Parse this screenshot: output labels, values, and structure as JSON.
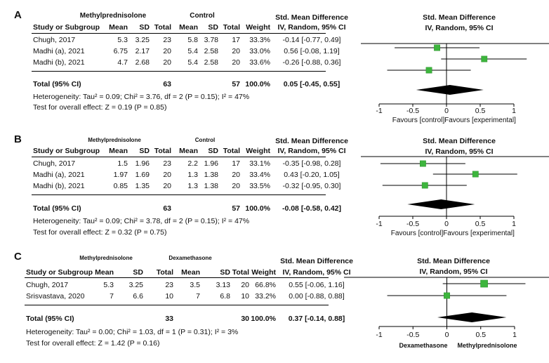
{
  "chart_data": [
    {
      "type": "forest",
      "panel_label": "A",
      "group_labels": {
        "experimental": "Methylprednisolone",
        "control": "Control"
      },
      "columns": [
        "Study or Subgroup",
        "Mean",
        "SD",
        "Total",
        "Mean",
        "SD",
        "Total",
        "Weight",
        "IV, Random, 95% CI"
      ],
      "effect_header": "Std. Mean Difference",
      "plot_header": "Std. Mean Difference",
      "plot_subheader": "IV, Random, 95% CI",
      "studies": [
        {
          "name": "Chugh, 2017",
          "exp_mean": "5.3",
          "exp_sd": "3.25",
          "exp_total": "23",
          "ctl_mean": "5.8",
          "ctl_sd": "3.78",
          "ctl_total": "17",
          "weight": "33.3%",
          "ci_text": "-0.14 [-0.77, 0.49]",
          "est": -0.14,
          "lo": -0.77,
          "hi": 0.49,
          "w": 33.3
        },
        {
          "name": "Madhi (a), 2021",
          "exp_mean": "6.75",
          "exp_sd": "2.17",
          "exp_total": "20",
          "ctl_mean": "5.4",
          "ctl_sd": "2.58",
          "ctl_total": "20",
          "weight": "33.0%",
          "ci_text": "0.56 [-0.08, 1.19]",
          "est": 0.56,
          "lo": -0.08,
          "hi": 1.19,
          "w": 33.0
        },
        {
          "name": "Madhi (b), 2021",
          "exp_mean": "4.7",
          "exp_sd": "2.68",
          "exp_total": "20",
          "ctl_mean": "5.4",
          "ctl_sd": "2.58",
          "ctl_total": "20",
          "weight": "33.6%",
          "ci_text": "-0.26 [-0.88, 0.36]",
          "est": -0.26,
          "lo": -0.88,
          "hi": 0.36,
          "w": 33.6
        }
      ],
      "total": {
        "name": "Total (95% CI)",
        "exp_total": "63",
        "ctl_total": "57",
        "weight": "100.0%",
        "ci_text": "0.05 [-0.45, 0.55]",
        "est": 0.05,
        "lo": -0.45,
        "hi": 0.55
      },
      "heterogeneity": "Heterogeneity: Tau² = 0.09; Chi² = 3.76, df = 2 (P = 0.15); I² = 47%",
      "overall_effect": "Test for overall effect: Z = 0.19 (P = 0.85)",
      "xlim": [
        -1,
        1
      ],
      "ticks": [
        "-1",
        "-0.5",
        "0",
        "0.5",
        "1"
      ],
      "favours_left": "Favours [control]",
      "favours_right": "Favours [experimental]"
    },
    {
      "type": "forest",
      "panel_label": "B",
      "group_labels": {
        "experimental": "Methylprednisolone",
        "control": "Control"
      },
      "columns": [
        "Study or Subgroup",
        "Mean",
        "SD",
        "Total",
        "Mean",
        "SD",
        "Total",
        "Weight",
        "IV, Random, 95% CI"
      ],
      "effect_header": "Std. Mean Difference",
      "plot_header": "Std. Mean Difference",
      "plot_subheader": "IV, Random, 95% CI",
      "studies": [
        {
          "name": "Chugh, 2017",
          "exp_mean": "1.5",
          "exp_sd": "1.96",
          "exp_total": "23",
          "ctl_mean": "2.2",
          "ctl_sd": "1.96",
          "ctl_total": "17",
          "weight": "33.1%",
          "ci_text": "-0.35 [-0.98, 0.28]",
          "est": -0.35,
          "lo": -0.98,
          "hi": 0.28,
          "w": 33.1
        },
        {
          "name": "Madhi (a), 2021",
          "exp_mean": "1.97",
          "exp_sd": "1.69",
          "exp_total": "20",
          "ctl_mean": "1.3",
          "ctl_sd": "1.38",
          "ctl_total": "20",
          "weight": "33.4%",
          "ci_text": "0.43 [-0.20, 1.05]",
          "est": 0.43,
          "lo": -0.2,
          "hi": 1.05,
          "w": 33.4
        },
        {
          "name": "Madhi (b), 2021",
          "exp_mean": "0.85",
          "exp_sd": "1.35",
          "exp_total": "20",
          "ctl_mean": "1.3",
          "ctl_sd": "1.38",
          "ctl_total": "20",
          "weight": "33.5%",
          "ci_text": "-0.32 [-0.95, 0.30]",
          "est": -0.32,
          "lo": -0.95,
          "hi": 0.3,
          "w": 33.5
        }
      ],
      "total": {
        "name": "Total (95% CI)",
        "exp_total": "63",
        "ctl_total": "57",
        "weight": "100.0%",
        "ci_text": "-0.08 [-0.58, 0.42]",
        "est": -0.08,
        "lo": -0.58,
        "hi": 0.42
      },
      "heterogeneity": "Heterogeneity: Tau² = 0.09; Chi² = 3.78, df = 2 (P = 0.15); I² = 47%",
      "overall_effect": "Test for overall effect: Z = 0.32 (P = 0.75)",
      "xlim": [
        -1,
        1
      ],
      "ticks": [
        "-1",
        "-0.5",
        "0",
        "0.5",
        "1"
      ],
      "favours_left": "Favours [control]",
      "favours_right": "Favours [experimental]"
    },
    {
      "type": "forest",
      "panel_label": "C",
      "group_labels": {
        "experimental": "Methylprednisolone",
        "control": "Dexamethasone"
      },
      "columns": [
        "Study or Subgroup",
        "Mean",
        "SD",
        "Total",
        "Mean",
        "SD",
        "Total",
        "Weight",
        "IV, Random, 95% CI"
      ],
      "effect_header": "Std. Mean Difference",
      "plot_header": "Std. Mean Difference",
      "plot_subheader": "IV, Random, 95% CI",
      "studies": [
        {
          "name": "Chugh, 2017",
          "exp_mean": "5.3",
          "exp_sd": "3.25",
          "exp_total": "23",
          "ctl_mean": "3.5",
          "ctl_sd": "3.13",
          "ctl_total": "20",
          "weight": "66.8%",
          "ci_text": "0.55 [-0.06, 1.16]",
          "est": 0.55,
          "lo": -0.06,
          "hi": 1.16,
          "w": 66.8
        },
        {
          "name": "Srisvastava, 2020",
          "exp_mean": "7",
          "exp_sd": "6.6",
          "exp_total": "10",
          "ctl_mean": "7",
          "ctl_sd": "6.8",
          "ctl_total": "10",
          "weight": "33.2%",
          "ci_text": "0.00 [-0.88, 0.88]",
          "est": 0.0,
          "lo": -0.88,
          "hi": 0.88,
          "w": 33.2
        }
      ],
      "total": {
        "name": "Total (95% CI)",
        "exp_total": "33",
        "ctl_total": "30",
        "weight": "100.0%",
        "ci_text": "0.37 [-0.14, 0.88]",
        "est": 0.37,
        "lo": -0.14,
        "hi": 0.88
      },
      "heterogeneity": "Heterogeneity: Tau² = 0.00; Chi² = 1.03, df = 1 (P = 0.31); I² = 3%",
      "overall_effect": "Test for overall effect: Z = 1.42 (P = 0.16)",
      "xlim": [
        -1,
        1
      ],
      "ticks": [
        "-1",
        "-0.5",
        "0",
        "0.5",
        "1"
      ],
      "favours_left": "Dexamethasone",
      "favours_right": "Methylprednisolone"
    }
  ],
  "colors": {
    "marker": "#3db53d",
    "marker_edge": "#2a8f2a",
    "diamond": "#000000",
    "line": "#000000"
  }
}
